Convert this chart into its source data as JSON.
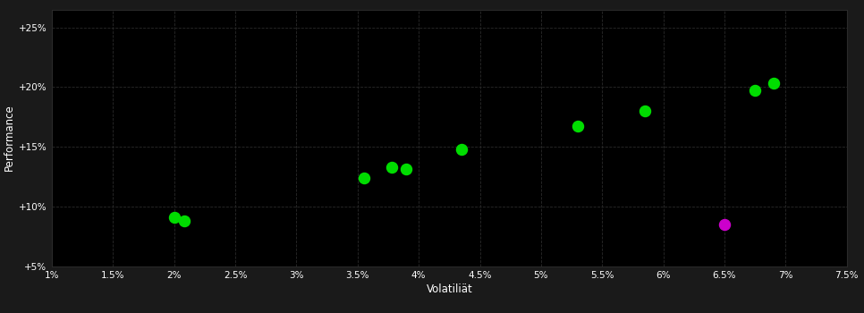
{
  "background_color": "#1a1a1a",
  "plot_bg_color": "#000000",
  "grid_color": "#2a2a2a",
  "text_color": "#ffffff",
  "xlabel": "Volatiliät",
  "ylabel": "Performance",
  "xlim": [
    0.01,
    0.075
  ],
  "ylim": [
    0.05,
    0.265
  ],
  "xticks": [
    0.01,
    0.015,
    0.02,
    0.025,
    0.03,
    0.035,
    0.04,
    0.045,
    0.05,
    0.055,
    0.06,
    0.065,
    0.07,
    0.075
  ],
  "xtick_labels": [
    "1%",
    "1.5%",
    "2%",
    "2.5%",
    "3%",
    "3.5%",
    "4%",
    "4.5%",
    "5%",
    "5.5%",
    "6%",
    "6.5%",
    "7%",
    "7.5%"
  ],
  "yticks": [
    0.05,
    0.1,
    0.15,
    0.2,
    0.25
  ],
  "ytick_labels": [
    "+5%",
    "+10%",
    "+15%",
    "+20%",
    "+25%"
  ],
  "green_points": [
    [
      0.02,
      0.091
    ],
    [
      0.0208,
      0.088
    ],
    [
      0.0355,
      0.124
    ],
    [
      0.0378,
      0.133
    ],
    [
      0.039,
      0.131
    ],
    [
      0.0435,
      0.148
    ],
    [
      0.053,
      0.167
    ],
    [
      0.0585,
      0.18
    ],
    [
      0.0675,
      0.197
    ],
    [
      0.069,
      0.203
    ]
  ],
  "magenta_points": [
    [
      0.065,
      0.085
    ]
  ],
  "green_color": "#00dd00",
  "magenta_color": "#cc00cc",
  "marker_size": 5
}
